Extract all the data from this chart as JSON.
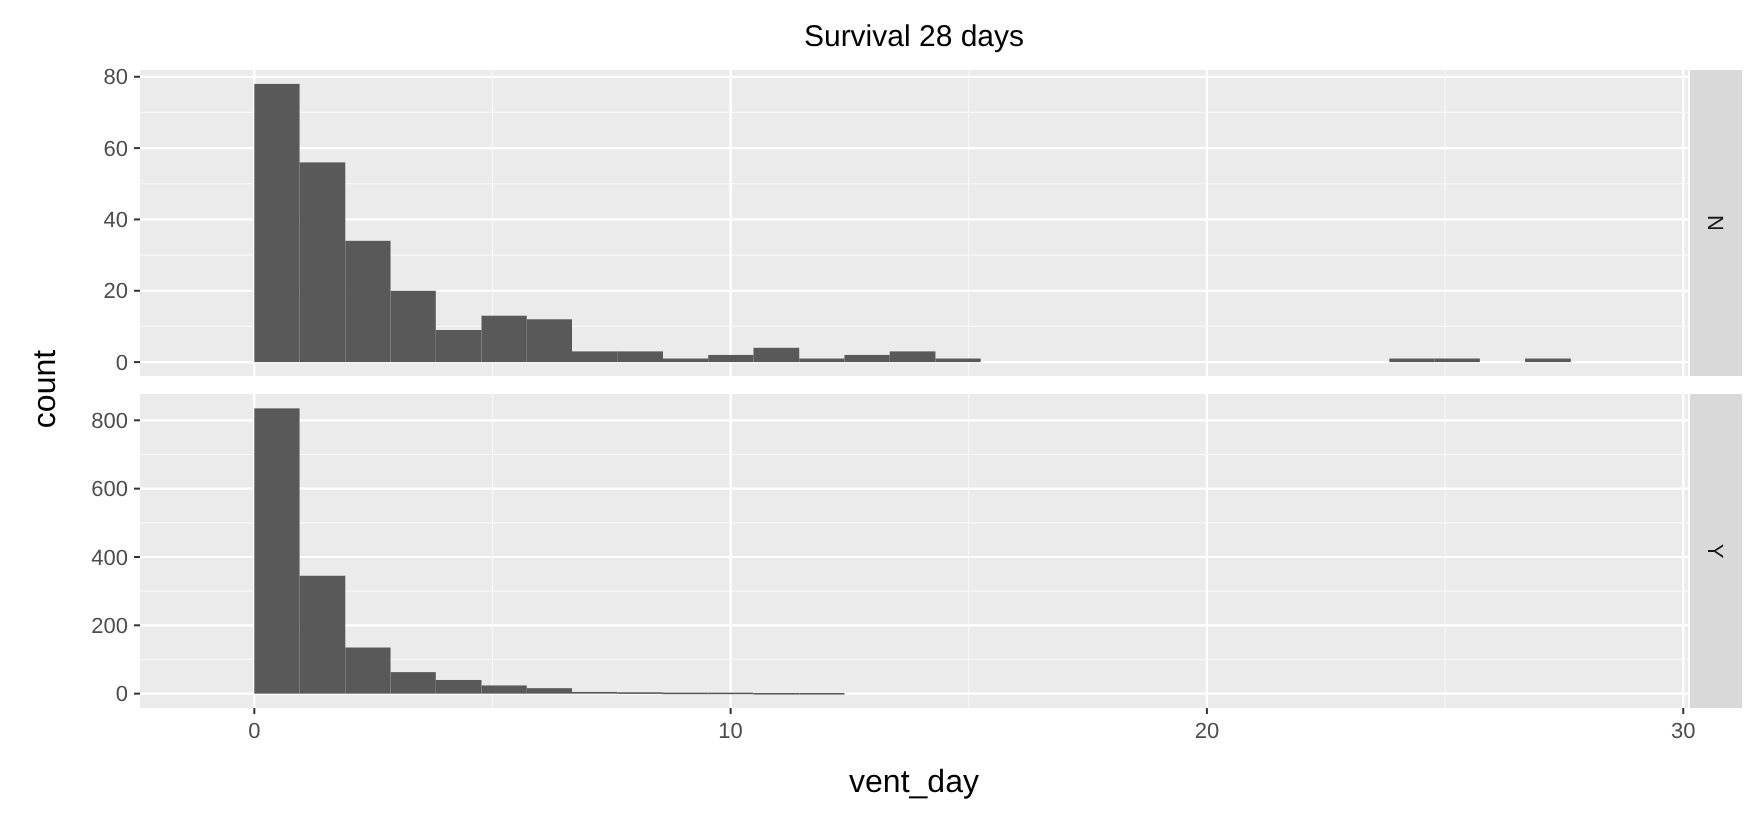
{
  "chart_data": [
    {
      "type": "histogram",
      "title": "Survival 28 days",
      "annotations": [
        "N"
      ],
      "ylabel": "count",
      "color": "#595959",
      "bins": [
        0,
        0.95,
        1.91,
        2.86,
        3.81,
        4.77,
        5.72,
        6.67,
        7.62,
        8.58,
        9.53,
        10.48,
        11.44,
        12.39,
        13.34,
        14.3,
        15.25,
        16.2,
        17.15,
        18.11,
        19.06,
        20.01,
        20.97,
        21.92,
        22.87,
        23.83,
        24.78,
        25.73,
        26.68,
        27.64
      ],
      "values": [
        78,
        56,
        34,
        20,
        9,
        13,
        12,
        3,
        3,
        1,
        2,
        4,
        1,
        2,
        3,
        1,
        0,
        0,
        0,
        0,
        0,
        0,
        0,
        0,
        0,
        1,
        1,
        0,
        1
      ],
      "xlim": [
        -2.4,
        30.1
      ],
      "xticks": [
        0,
        10,
        20,
        30
      ],
      "ylim": [
        -3.9,
        81.9
      ],
      "yticks": [
        0,
        20,
        40,
        60,
        80
      ],
      "grid": true,
      "tick_labels": "y"
    },
    {
      "type": "histogram",
      "annotations": [
        "Y"
      ],
      "xlabel": "vent_day",
      "color": "#595959",
      "bins": [
        0,
        0.95,
        1.91,
        2.86,
        3.81,
        4.77,
        5.72,
        6.67,
        7.62,
        8.58,
        9.53,
        10.48,
        11.44,
        12.39,
        13.34,
        14.3,
        15.25,
        16.2,
        17.15,
        18.11,
        19.06,
        20.01,
        20.97,
        21.92,
        22.87,
        23.83,
        24.78,
        25.73,
        26.68,
        27.64
      ],
      "values": [
        835,
        345,
        135,
        63,
        40,
        24,
        16,
        5,
        4,
        3,
        3,
        2,
        2,
        0,
        0,
        0,
        0,
        0,
        0,
        0,
        0,
        0,
        0,
        0,
        0,
        0,
        0,
        0,
        0
      ],
      "xlim": [
        -2.4,
        30.1
      ],
      "xticks": [
        0,
        10,
        20,
        30
      ],
      "ylim": [
        -42,
        877
      ],
      "yticks": [
        0,
        200,
        400,
        600,
        800
      ],
      "grid": true
    }
  ]
}
